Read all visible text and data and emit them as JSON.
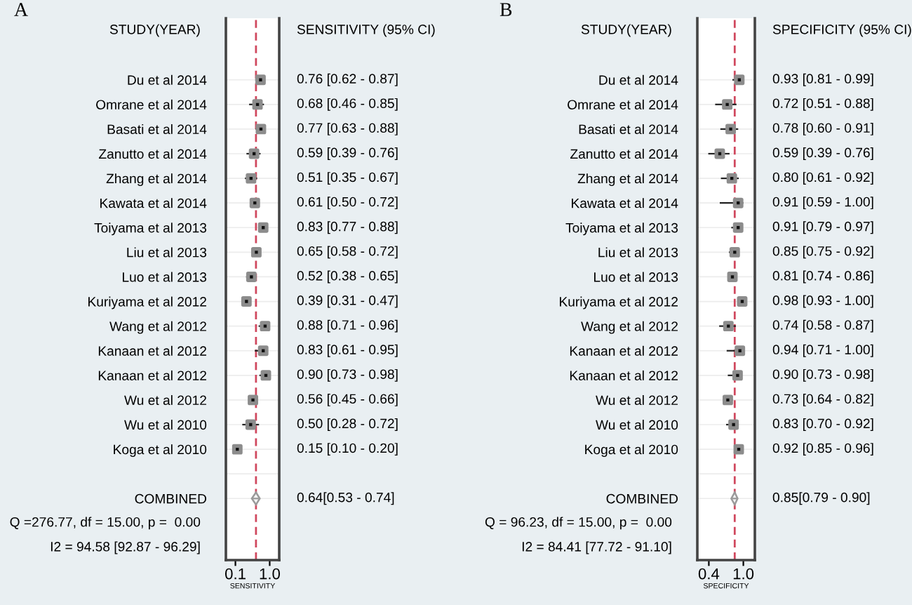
{
  "chart_data": [
    {
      "type": "scatter",
      "title": "A",
      "xlabel": "SENSITIVITY",
      "ylabel": "STUDY(YEAR)",
      "orientation": "horizontal",
      "annotations": [
        "SENSITIVITY (95% CI)",
        "Q =276.77, df = 15.00, p =  0.00",
        "I2 = 94.58 [92.87 - 96.29]"
      ],
      "categories": [
        "Du et al 2014",
        "Omrane et al 2014",
        "Basati et al 2014",
        "Zanutto et al 2014",
        "Zhang et al 2014",
        "Kawata et al 2014",
        "Toiyama et al 2013",
        "Liu et al 2013",
        "Luo et al 2013",
        "Kuriyama et al 2012",
        "Wang et al 2012",
        "Kanaan et al 2012",
        "Kanaan et al 2012",
        "Wu et al 2012",
        "Wu et al 2010",
        "Koga et al 2010",
        null,
        "COMBINED"
      ],
      "series": [
        {
          "color": "#8c8c8c",
          "marker": "square",
          "values": [
            0.76,
            0.68,
            0.77,
            0.59,
            0.51,
            0.61,
            0.83,
            0.65,
            0.52,
            0.39,
            0.88,
            0.83,
            0.9,
            0.56,
            0.5,
            0.15,
            null,
            null
          ],
          "errors": [
            [
              0.62,
              0.87
            ],
            [
              0.46,
              0.85
            ],
            [
              0.63,
              0.88
            ],
            [
              0.39,
              0.76
            ],
            [
              0.35,
              0.67
            ],
            [
              0.5,
              0.72
            ],
            [
              0.77,
              0.88
            ],
            [
              0.58,
              0.72
            ],
            [
              0.38,
              0.65
            ],
            [
              0.31,
              0.47
            ],
            [
              0.71,
              0.96
            ],
            [
              0.61,
              0.95
            ],
            [
              0.73,
              0.98
            ],
            [
              0.45,
              0.66
            ],
            [
              0.28,
              0.72
            ],
            [
              0.1,
              0.2
            ],
            null,
            null
          ],
          "value_labels": [
            "0.76 [0.62 - 0.87]",
            "0.68 [0.46 - 0.85]",
            "0.77 [0.63 - 0.88]",
            "0.59 [0.39 - 0.76]",
            "0.51 [0.35 - 0.67]",
            "0.61 [0.50 - 0.72]",
            "0.83 [0.77 - 0.88]",
            "0.65 [0.58 - 0.72]",
            "0.52 [0.38 - 0.65]",
            "0.39 [0.31 - 0.47]",
            "0.88 [0.71 - 0.96]",
            "0.83 [0.61 - 0.95]",
            "0.90 [0.73 - 0.98]",
            "0.56 [0.45 - 0.66]",
            "0.50 [0.28 - 0.72]",
            "0.15 [0.10 - 0.20]",
            null,
            null
          ]
        },
        {
          "color": "#9a9a9a",
          "marker": "diamond",
          "values": [
            null,
            null,
            null,
            null,
            null,
            null,
            null,
            null,
            null,
            null,
            null,
            null,
            null,
            null,
            null,
            null,
            null,
            0.64
          ],
          "errors": [
            null,
            null,
            null,
            null,
            null,
            null,
            null,
            null,
            null,
            null,
            null,
            null,
            null,
            null,
            null,
            null,
            null,
            [
              0.53,
              0.74
            ]
          ],
          "value_labels": [
            null,
            null,
            null,
            null,
            null,
            null,
            null,
            null,
            null,
            null,
            null,
            null,
            null,
            null,
            null,
            null,
            null,
            "0.64[0.53 - 0.74]"
          ]
        }
      ],
      "xlim": [
        -0.15,
        1.25
      ],
      "xticks": [
        {
          "value": 0.1,
          "label": "0.1"
        },
        {
          "value": 1.0,
          "label": "1.0"
        }
      ],
      "grid": "y",
      "ref_lines": [
        {
          "axis": "x",
          "value": 0.64,
          "color": "#d0485e",
          "line_style": "dashed"
        }
      ]
    },
    {
      "type": "scatter",
      "title": "B",
      "xlabel": "SPECIFICITY",
      "ylabel": "STUDY(YEAR)",
      "orientation": "horizontal",
      "annotations": [
        "SPECIFICITY (95% CI)",
        "Q = 96.23, df = 15.00, p =  0.00",
        "I2 = 84.41 [77.72 - 91.10]"
      ],
      "categories": [
        "Du et al 2014",
        "Omrane et al 2014",
        "Basati et al 2014",
        "Zanutto et al 2014",
        "Zhang et al 2014",
        "Kawata et al 2014",
        "Toiyama et al 2013",
        "Liu et al 2013",
        "Luo et al 2013",
        "Kuriyama et al 2012",
        "Wang et al 2012",
        "Kanaan et al 2012",
        "Kanaan et al 2012",
        "Wu et al 2012",
        "Wu et al 2010",
        "Koga et al 2010",
        null,
        "COMBINED"
      ],
      "series": [
        {
          "color": "#8c8c8c",
          "marker": "square",
          "values": [
            0.93,
            0.72,
            0.78,
            0.59,
            0.8,
            0.91,
            0.91,
            0.85,
            0.81,
            0.98,
            0.74,
            0.94,
            0.9,
            0.73,
            0.83,
            0.92,
            null,
            null
          ],
          "errors": [
            [
              0.81,
              0.99
            ],
            [
              0.51,
              0.88
            ],
            [
              0.6,
              0.91
            ],
            [
              0.39,
              0.76
            ],
            [
              0.61,
              0.92
            ],
            [
              0.59,
              1.0
            ],
            [
              0.79,
              0.97
            ],
            [
              0.75,
              0.92
            ],
            [
              0.74,
              0.86
            ],
            [
              0.93,
              1.0
            ],
            [
              0.58,
              0.87
            ],
            [
              0.71,
              1.0
            ],
            [
              0.73,
              0.98
            ],
            [
              0.64,
              0.82
            ],
            [
              0.7,
              0.92
            ],
            [
              0.85,
              0.96
            ],
            null,
            null
          ],
          "value_labels": [
            "0.93 [0.81 - 0.99]",
            "0.72 [0.51 - 0.88]",
            "0.78 [0.60 - 0.91]",
            "0.59 [0.39 - 0.76]",
            "0.80 [0.61 - 0.92]",
            "0.91 [0.59 - 1.00]",
            "0.91 [0.79 - 0.97]",
            "0.85 [0.75 - 0.92]",
            "0.81 [0.74 - 0.86]",
            "0.98 [0.93 - 1.00]",
            "0.74 [0.58 - 0.87]",
            "0.94 [0.71 - 1.00]",
            "0.90 [0.73 - 0.98]",
            "0.73 [0.64 - 0.82]",
            "0.83 [0.70 - 0.92]",
            "0.92 [0.85 - 0.96]",
            null,
            null
          ]
        },
        {
          "color": "#9a9a9a",
          "marker": "diamond",
          "values": [
            null,
            null,
            null,
            null,
            null,
            null,
            null,
            null,
            null,
            null,
            null,
            null,
            null,
            null,
            null,
            null,
            null,
            0.85
          ],
          "errors": [
            null,
            null,
            null,
            null,
            null,
            null,
            null,
            null,
            null,
            null,
            null,
            null,
            null,
            null,
            null,
            null,
            null,
            [
              0.79,
              0.9
            ]
          ],
          "value_labels": [
            null,
            null,
            null,
            null,
            null,
            null,
            null,
            null,
            null,
            null,
            null,
            null,
            null,
            null,
            null,
            null,
            null,
            "0.85[0.79 - 0.90]"
          ]
        }
      ],
      "xlim": [
        0.2,
        1.2
      ],
      "xticks": [
        {
          "value": 0.4,
          "label": "0.4"
        },
        {
          "value": 1.0,
          "label": "1.0"
        }
      ],
      "grid": "y",
      "ref_lines": [
        {
          "axis": "x",
          "value": 0.85,
          "color": "#d0485e",
          "line_style": "dashed"
        }
      ]
    }
  ]
}
